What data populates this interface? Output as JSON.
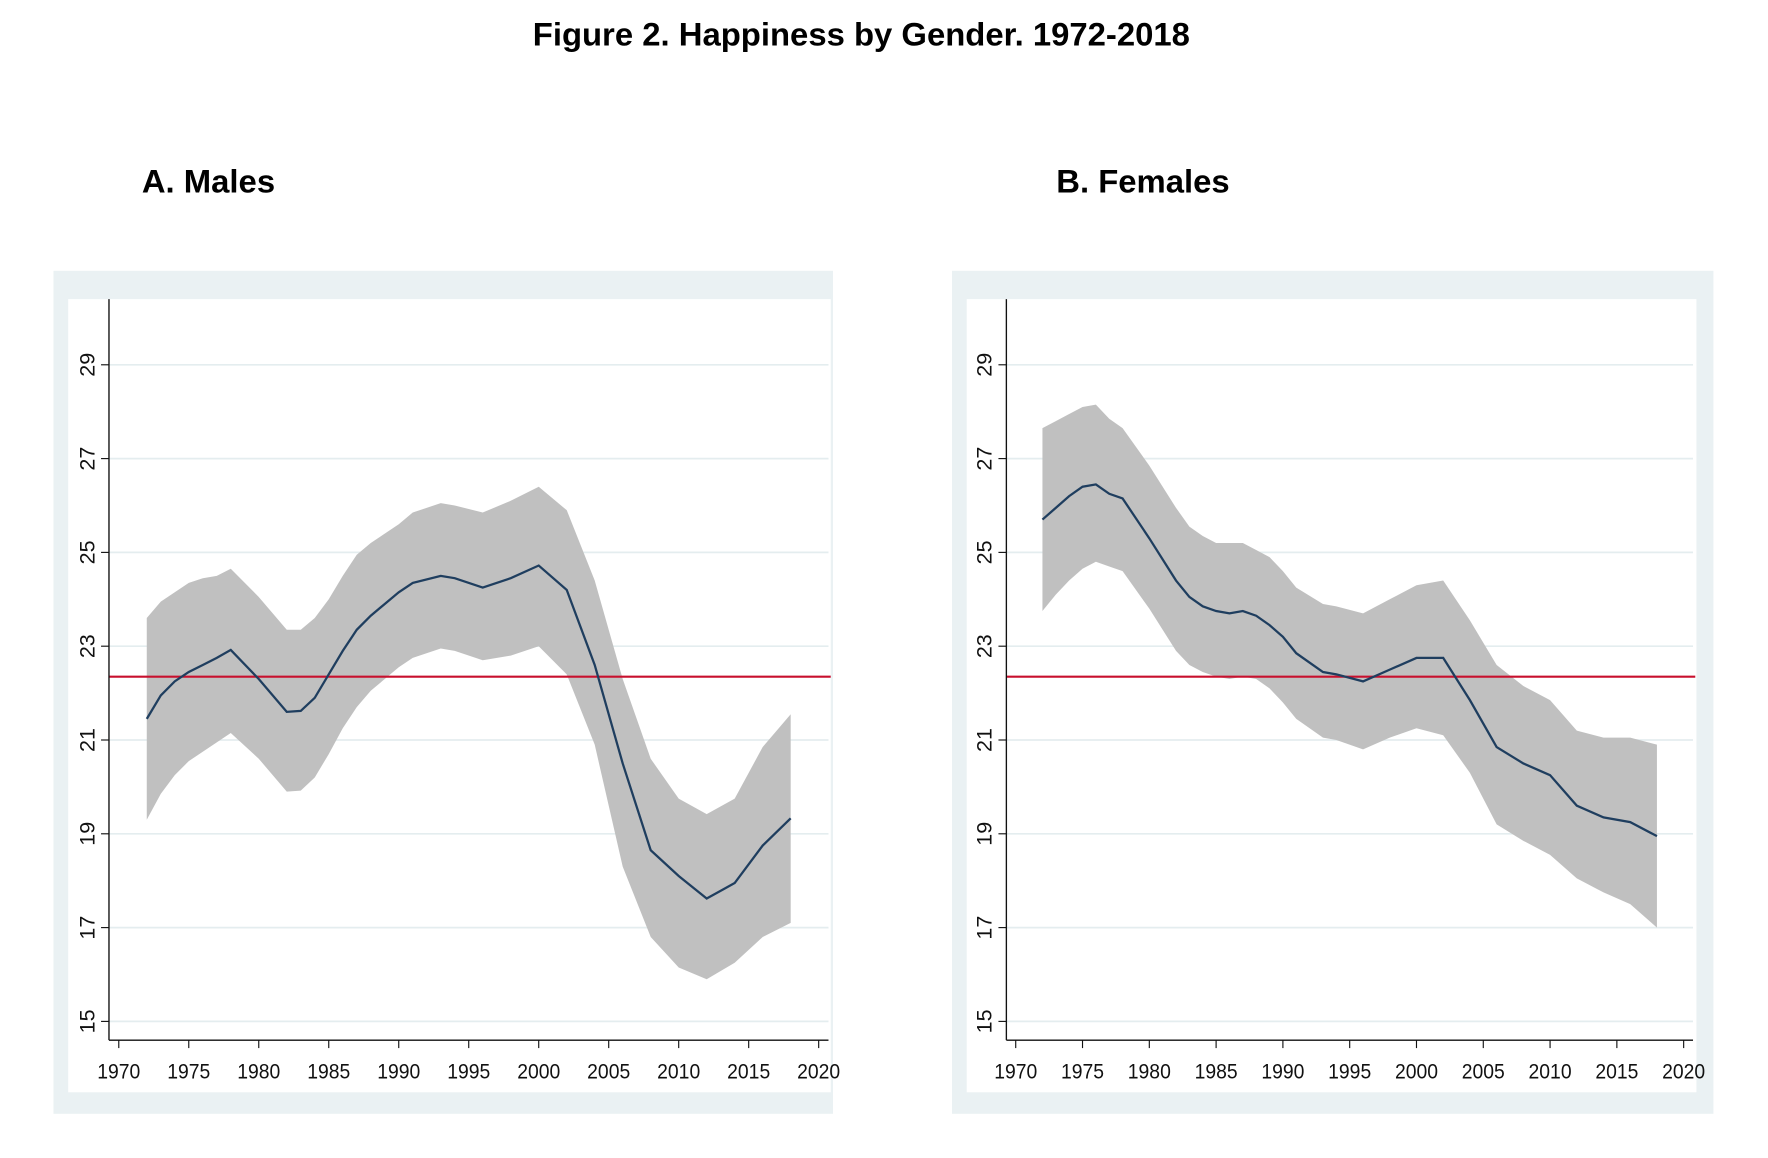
{
  "title": "Figure 2. Happiness by Gender. 1972-2018",
  "chart_data": [
    {
      "type": "line",
      "title": "A. Males",
      "x": [
        1972,
        1973,
        1974,
        1975,
        1976,
        1977,
        1978,
        1980,
        1982,
        1983,
        1984,
        1985,
        1986,
        1987,
        1988,
        1989,
        1990,
        1991,
        1993,
        1994,
        1996,
        1998,
        2000,
        2002,
        2004,
        2006,
        2008,
        2010,
        2012,
        2014,
        2016,
        2018
      ],
      "series": [
        {
          "color": "#1f3e5f",
          "values": [
            21.45,
            21.95,
            22.25,
            22.45,
            22.6,
            22.75,
            22.92,
            22.3,
            21.6,
            21.62,
            21.9,
            22.4,
            22.9,
            23.35,
            23.65,
            23.9,
            24.15,
            24.35,
            24.5,
            24.45,
            24.25,
            24.45,
            24.72,
            24.2,
            22.6,
            20.5,
            18.65,
            18.1,
            17.62,
            17.95,
            18.75,
            19.33
          ]
        }
      ],
      "band": {
        "color": "#c0c0c0",
        "upper": [
          23.6,
          23.95,
          24.15,
          24.35,
          24.45,
          24.5,
          24.65,
          24.05,
          23.35,
          23.35,
          23.6,
          24.0,
          24.5,
          24.95,
          25.2,
          25.4,
          25.6,
          25.85,
          26.05,
          26.0,
          25.85,
          26.1,
          26.4,
          25.9,
          24.4,
          22.3,
          20.6,
          19.75,
          19.42,
          19.75,
          20.85,
          21.55
        ],
        "lower": [
          19.3,
          19.85,
          20.25,
          20.55,
          20.75,
          20.95,
          21.15,
          20.6,
          19.9,
          19.92,
          20.2,
          20.7,
          21.25,
          21.7,
          22.05,
          22.3,
          22.55,
          22.75,
          22.95,
          22.9,
          22.7,
          22.8,
          23.0,
          22.4,
          20.9,
          18.3,
          16.8,
          16.15,
          15.9,
          16.25,
          16.8,
          17.1
        ]
      },
      "reference_line": {
        "value": 22.35,
        "color": "#c8102e"
      },
      "xlim": [
        1969.3,
        2020.7
      ],
      "xticks": [
        1970,
        1975,
        1980,
        1985,
        1990,
        1995,
        2000,
        2005,
        2010,
        2015,
        2020
      ],
      "ylim": [
        14.6,
        30.4
      ],
      "yticks": [
        15,
        17,
        19,
        21,
        23,
        25,
        27,
        29
      ],
      "grid": true
    },
    {
      "type": "line",
      "title": "B. Females",
      "x": [
        1972,
        1973,
        1974,
        1975,
        1976,
        1977,
        1978,
        1980,
        1982,
        1983,
        1984,
        1985,
        1986,
        1987,
        1988,
        1989,
        1990,
        1991,
        1993,
        1994,
        1996,
        1998,
        2000,
        2002,
        2004,
        2006,
        2008,
        2010,
        2012,
        2014,
        2016,
        2018
      ],
      "series": [
        {
          "color": "#1f3e5f",
          "values": [
            25.7,
            25.95,
            26.2,
            26.4,
            26.45,
            26.25,
            26.15,
            25.3,
            24.4,
            24.05,
            23.85,
            23.75,
            23.7,
            23.75,
            23.65,
            23.45,
            23.2,
            22.85,
            22.45,
            22.4,
            22.25,
            22.5,
            22.75,
            22.75,
            21.85,
            20.85,
            20.5,
            20.25,
            19.6,
            19.35,
            19.25,
            18.95
          ]
        }
      ],
      "band": {
        "color": "#c0c0c0",
        "upper": [
          27.65,
          27.8,
          27.95,
          28.1,
          28.15,
          27.85,
          27.65,
          26.85,
          25.95,
          25.55,
          25.35,
          25.2,
          25.2,
          25.2,
          25.05,
          24.9,
          24.6,
          24.25,
          23.9,
          23.85,
          23.7,
          24.0,
          24.3,
          24.4,
          23.55,
          22.6,
          22.15,
          21.85,
          21.2,
          21.05,
          21.05,
          20.9
        ],
        "lower": [
          23.75,
          24.1,
          24.4,
          24.65,
          24.8,
          24.7,
          24.6,
          23.8,
          22.9,
          22.6,
          22.45,
          22.35,
          22.3,
          22.35,
          22.3,
          22.1,
          21.8,
          21.45,
          21.05,
          21.0,
          20.8,
          21.05,
          21.25,
          21.1,
          20.3,
          19.2,
          18.85,
          18.55,
          18.05,
          17.75,
          17.5,
          17.0
        ]
      },
      "reference_line": {
        "value": 22.35,
        "color": "#c8102e"
      },
      "xlim": [
        1969.3,
        2020.7
      ],
      "xticks": [
        1970,
        1975,
        1980,
        1985,
        1990,
        1995,
        2000,
        2005,
        2010,
        2015,
        2020
      ],
      "ylim": [
        14.6,
        30.4
      ],
      "yticks": [
        15,
        17,
        19,
        21,
        23,
        25,
        27,
        29
      ],
      "grid": true
    }
  ]
}
